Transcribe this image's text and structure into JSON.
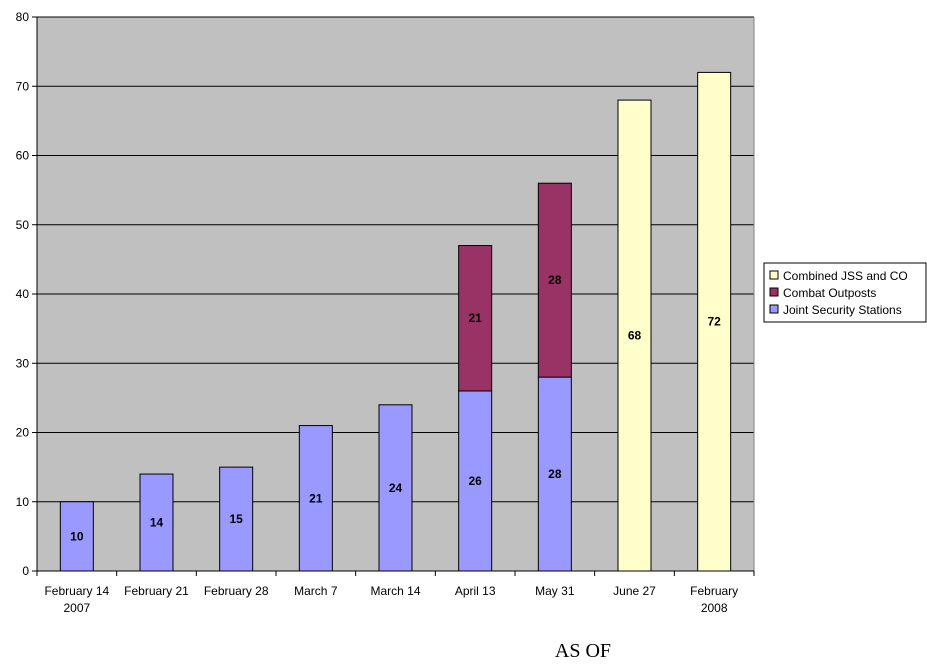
{
  "chart_data": {
    "type": "bar",
    "stacked": true,
    "categories": [
      [
        "February 14",
        "2007"
      ],
      [
        "February 21"
      ],
      [
        "February 28"
      ],
      [
        "March 7"
      ],
      [
        "March 14"
      ],
      [
        "April 13"
      ],
      [
        "May 31"
      ],
      [
        "June 27"
      ],
      [
        "February",
        "2008"
      ]
    ],
    "series": [
      {
        "name": "Joint Security Stations",
        "color": "#9999ff",
        "values": [
          10,
          14,
          15,
          21,
          24,
          26,
          28,
          null,
          null
        ]
      },
      {
        "name": "Combat Outposts",
        "color": "#993366",
        "values": [
          null,
          null,
          null,
          null,
          null,
          21,
          28,
          null,
          null
        ]
      },
      {
        "name": "Combined JSS and CO",
        "color": "#ffffcc",
        "values": [
          null,
          null,
          null,
          null,
          null,
          null,
          null,
          68,
          72
        ]
      }
    ],
    "legend_order": [
      "Combined JSS and CO",
      "Combat Outposts",
      "Joint Security Stations"
    ],
    "legend_position": "right",
    "xlabel": "AS OF",
    "ylabel": "",
    "ylim": [
      0,
      80
    ],
    "yticks": [
      0,
      10,
      20,
      30,
      40,
      50,
      60,
      70,
      80
    ],
    "plot_background": "#c0c0c0",
    "grid": true
  }
}
